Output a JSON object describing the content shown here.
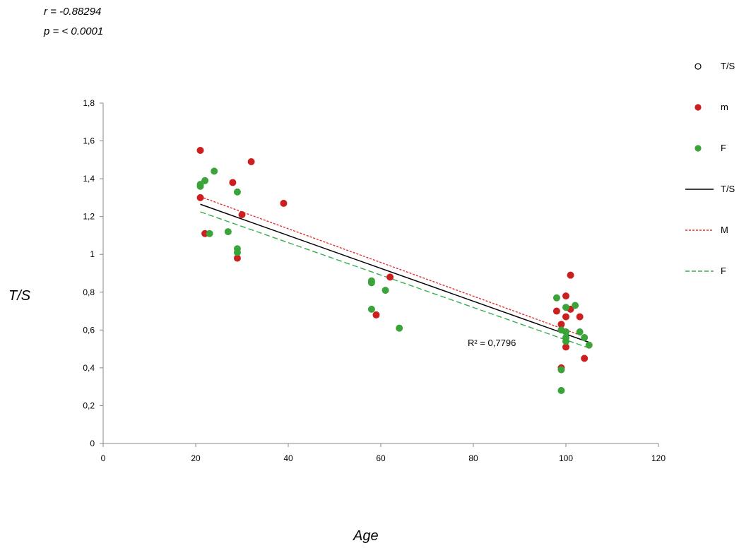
{
  "stats": {
    "r": "r = -0.88294",
    "p": "p = < 0.0001"
  },
  "axis_titles": {
    "y": "T/S",
    "x": "Age"
  },
  "r2_label": "R² = 0,7796",
  "legend": [
    {
      "label": "T/S",
      "kind": "marker",
      "color": "#ffffff",
      "stroke": "#000000"
    },
    {
      "label": "m",
      "kind": "marker",
      "color": "#cc1f1f",
      "stroke": "#cc1f1f"
    },
    {
      "label": "F",
      "kind": "marker",
      "color": "#3aa33a",
      "stroke": "#3aa33a"
    },
    {
      "label": "T/S",
      "kind": "line",
      "color": "#000000",
      "dash": "none"
    },
    {
      "label": "M",
      "kind": "line",
      "color": "#e03030",
      "dash": "dotted"
    },
    {
      "label": "F",
      "kind": "line",
      "color": "#33b04a",
      "dash": "dashed"
    }
  ],
  "chart_data": {
    "type": "scatter",
    "xlabel": "Age",
    "ylabel": "T/S",
    "xlim": [
      0,
      120
    ],
    "ylim": [
      0,
      1.8
    ],
    "x_ticks": [
      "0",
      "20",
      "40",
      "60",
      "80",
      "100",
      "120"
    ],
    "y_ticks": [
      "0",
      "0,2",
      "0,4",
      "0,6",
      "0,8",
      "1",
      "1,2",
      "1,4",
      "1,6",
      "1,8"
    ],
    "x_tick_values": [
      0,
      20,
      40,
      60,
      80,
      100,
      120
    ],
    "y_tick_values": [
      0,
      0.2,
      0.4,
      0.6,
      0.8,
      1.0,
      1.2,
      1.4,
      1.6,
      1.8
    ],
    "series": [
      {
        "name": "m",
        "color": "#cc1f1f",
        "points": [
          [
            21,
            1.55
          ],
          [
            21,
            1.3
          ],
          [
            22,
            1.11
          ],
          [
            28,
            1.38
          ],
          [
            29,
            0.98
          ],
          [
            30,
            1.21
          ],
          [
            32,
            1.49
          ],
          [
            39,
            1.27
          ],
          [
            59,
            0.68
          ],
          [
            62,
            0.88
          ],
          [
            98,
            0.7
          ],
          [
            99,
            0.63
          ],
          [
            99,
            0.4
          ],
          [
            100,
            0.78
          ],
          [
            100,
            0.67
          ],
          [
            100,
            0.51
          ],
          [
            101,
            0.89
          ],
          [
            101,
            0.71
          ],
          [
            103,
            0.67
          ],
          [
            104,
            0.45
          ]
        ]
      },
      {
        "name": "F",
        "color": "#3aa33a",
        "points": [
          [
            21,
            1.37
          ],
          [
            21,
            1.36
          ],
          [
            22,
            1.39
          ],
          [
            23,
            1.11
          ],
          [
            24,
            1.44
          ],
          [
            27,
            1.12
          ],
          [
            29,
            1.33
          ],
          [
            29,
            1.03
          ],
          [
            29,
            1.01
          ],
          [
            58,
            0.86
          ],
          [
            58,
            0.85
          ],
          [
            58,
            0.71
          ],
          [
            61,
            0.81
          ],
          [
            64,
            0.61
          ],
          [
            98,
            0.77
          ],
          [
            99,
            0.6
          ],
          [
            99,
            0.39
          ],
          [
            99,
            0.28
          ],
          [
            100,
            0.72
          ],
          [
            100,
            0.59
          ],
          [
            100,
            0.56
          ],
          [
            100,
            0.54
          ],
          [
            102,
            0.73
          ],
          [
            103,
            0.59
          ],
          [
            104,
            0.56
          ],
          [
            105,
            0.52
          ]
        ]
      }
    ],
    "trendlines": [
      {
        "name": "T/S",
        "color": "#000000",
        "dash": "none",
        "from": [
          21,
          1.265
        ],
        "to": [
          105,
          0.535
        ]
      },
      {
        "name": "M",
        "color": "#e03030",
        "dash": "dotted",
        "from": [
          21,
          1.305
        ],
        "to": [
          104,
          0.565
        ]
      },
      {
        "name": "F",
        "color": "#33b04a",
        "dash": "dashed",
        "from": [
          21,
          1.225
        ],
        "to": [
          105,
          0.505
        ]
      }
    ],
    "annotations": [
      "R² = 0,7796"
    ],
    "legend_position": "right",
    "grid": false
  }
}
